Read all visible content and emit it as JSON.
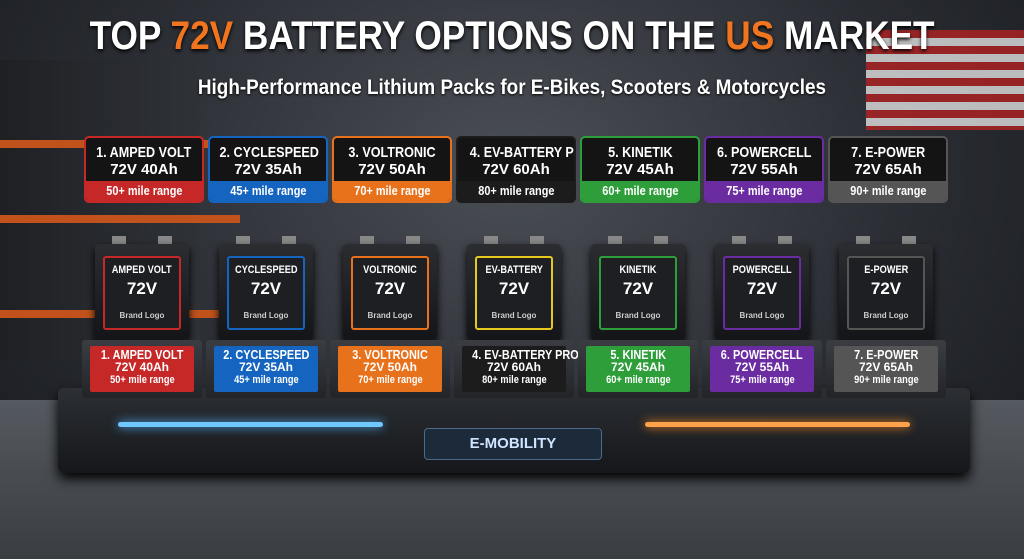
{
  "header": {
    "title_parts": [
      "TOP ",
      "72V",
      " BATTERY OPTIONS ON THE ",
      "US",
      " MARKET"
    ],
    "subtitle": "High-Performance Lithium Packs for E-Bikes, Scooters & Motorcycles"
  },
  "options": [
    {
      "name": "1. AMPED VOLT",
      "spec": "72V 40Ah",
      "range": "50+ mile range",
      "battery_label": "AMPED VOLT",
      "color": "#c62828"
    },
    {
      "name": "2. CYCLESPEED",
      "spec": "72V 35Ah",
      "range": "45+ mile range",
      "battery_label": "CYCLESPEED",
      "color": "#1565c0"
    },
    {
      "name": "3. VOLTRONIC",
      "spec": "72V 50Ah",
      "range": "70+ mile range",
      "battery_label": "VOLTRONIC",
      "color": "#e8711c"
    },
    {
      "name": "4. EV-BATTERY PRO",
      "spec": "72V 60Ah",
      "range": "80+ mile range",
      "battery_label": "EV-BATTERY",
      "color": "#1c1c1c"
    },
    {
      "name": "5. KINETIK",
      "spec": "72V 45Ah",
      "range": "60+ mile range",
      "battery_label": "KINETIK",
      "color": "#2e9e3a"
    },
    {
      "name": "6. POWERCELL",
      "spec": "72V 55Ah",
      "range": "75+ mile range",
      "battery_label": "POWERCELL",
      "color": "#6a2ca0"
    },
    {
      "name": "7. E-POWER",
      "spec": "72V 65Ah",
      "range": "90+ mile range",
      "battery_label": "E-POWER",
      "color": "#555555"
    }
  ],
  "battery_voltage": "72V",
  "battery_logo": "Brand Logo",
  "platform_logo": "E-MOBILITY"
}
